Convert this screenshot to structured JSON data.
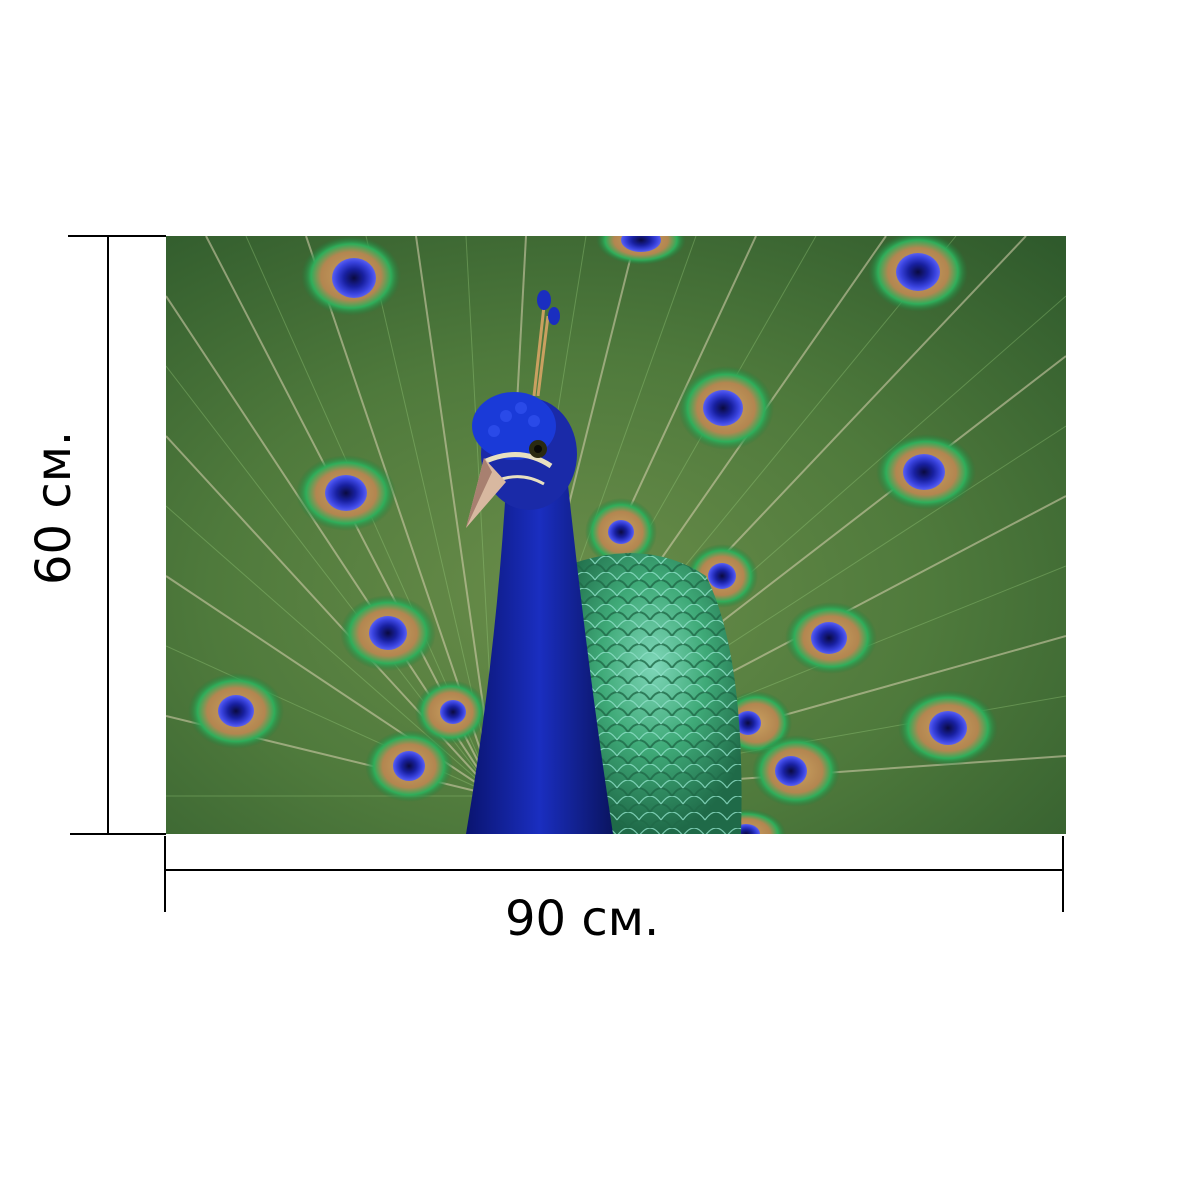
{
  "product": {
    "width_label": "90 см.",
    "height_label": "60 см."
  },
  "photo": {
    "subject_icon": "peacock-illustration",
    "colors": {
      "feather_green": "#3f7a3a",
      "feather_light": "#b8b890",
      "eye_blue": "#2a2fd0",
      "eye_bronze": "#c9a060",
      "neck_blue": "#1a2aa8"
    }
  }
}
